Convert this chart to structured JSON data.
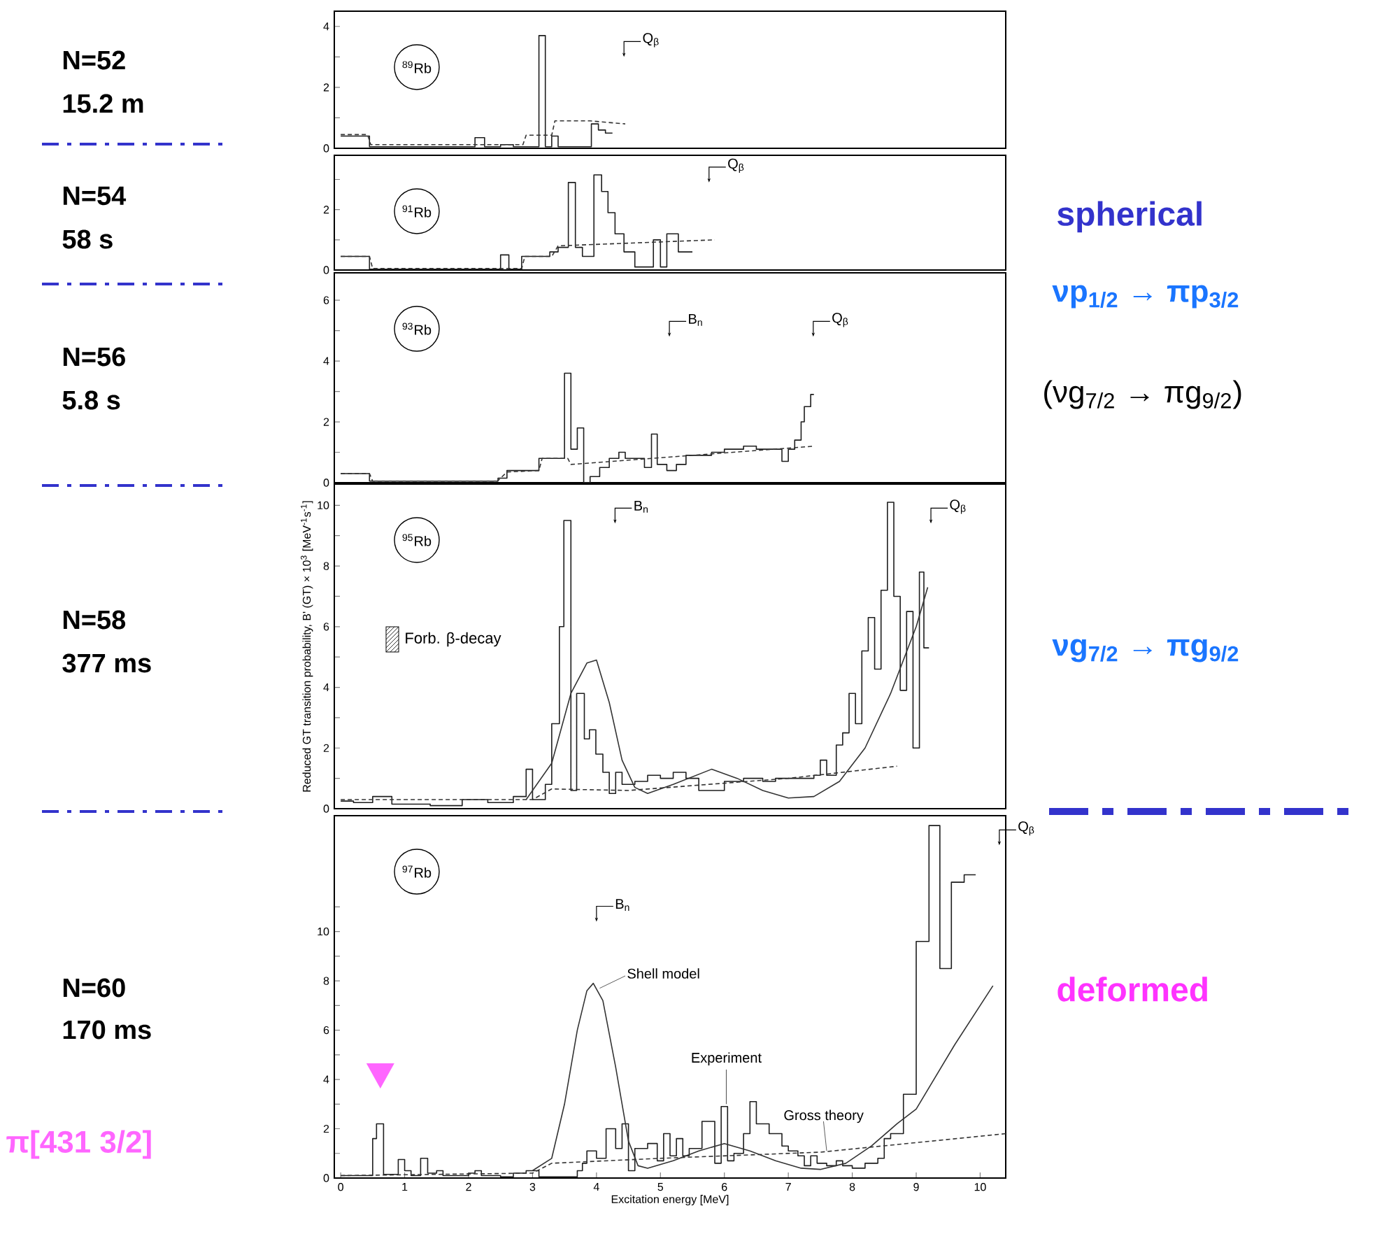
{
  "chart_data": [
    {
      "type": "histogram",
      "xlim": [
        -0.1,
        10.4
      ],
      "ylim": [
        0,
        4.5
      ],
      "tick_labels": "y",
      "yticks": [
        0,
        {
          "value": 1,
          "label": null
        },
        2,
        {
          "value": 3,
          "label": null
        },
        4
      ],
      "series": [
        {
          "type": "histogram",
          "color": "#1e1e1e",
          "bins": [
            0,
            0.45,
            2.1,
            2.25,
            2.5,
            2.7,
            3.1,
            3.2,
            3.3,
            3.4,
            3.92,
            4.03,
            4.14,
            4.25
          ],
          "values": [
            0.4,
            0.05,
            0.35,
            0.05,
            0.12,
            0.05,
            3.7,
            0.05,
            0.4,
            0.05,
            0.8,
            0.6,
            0.5
          ]
        },
        {
          "type": "line",
          "line_style": "dashed",
          "color": "#333333",
          "x": [
            0,
            0.42,
            0.47,
            2.85,
            2.9,
            3.3,
            3.35,
            3.9,
            4.45
          ],
          "values": [
            0.45,
            0.45,
            0.12,
            0.12,
            0.43,
            0.43,
            0.9,
            0.9,
            0.8
          ]
        }
      ],
      "annotations": [
        "$^{89}$Rb",
        "N=52",
        "15.2 m",
        {
          "text": "Q$_{β}$",
          "x": 4.43,
          "y": 3.0
        }
      ]
    },
    {
      "type": "histogram",
      "xlim": [
        -0.1,
        10.4
      ],
      "ylim": [
        0,
        3.8
      ],
      "tick_labels": "y",
      "yticks": [
        0,
        {
          "value": 1,
          "label": null
        },
        2,
        {
          "value": 3,
          "label": null
        }
      ],
      "series": [
        {
          "type": "histogram",
          "color": "#1e1e1e",
          "bins": [
            0,
            0.45,
            2.5,
            2.63,
            2.83,
            3.27,
            3.4,
            3.56,
            3.67,
            3.78,
            3.96,
            4.08,
            4.18,
            4.29,
            4.43,
            4.6,
            4.89,
            5.0,
            5.1,
            5.28,
            5.5
          ],
          "values": [
            0.45,
            0.03,
            0.5,
            0.03,
            0.45,
            0.6,
            0.75,
            2.9,
            0.75,
            0.45,
            3.15,
            2.6,
            1.9,
            1.2,
            0.6,
            0.1,
            1.0,
            0.1,
            1.2,
            0.6
          ]
        },
        {
          "type": "line",
          "line_style": "dashed",
          "color": "#333333",
          "x": [
            0,
            0.45,
            0.5,
            2.83,
            2.88,
            3.3,
            3.4,
            5.85
          ],
          "values": [
            0.45,
            0.45,
            0.05,
            0.05,
            0.45,
            0.45,
            0.8,
            1.0
          ]
        }
      ],
      "annotations": [
        "$^{91}$Rb",
        "N=54",
        "58 s",
        "spherical",
        {
          "text": "Q$_{β}$",
          "x": 5.76,
          "y": 2.9
        }
      ]
    },
    {
      "type": "histogram",
      "xlim": [
        -0.1,
        10.4
      ],
      "ylim": [
        0,
        6.9
      ],
      "tick_labels": "y",
      "yticks": [
        0,
        {
          "value": 1,
          "label": null
        },
        2,
        {
          "value": 3,
          "label": null
        },
        4,
        {
          "value": 5,
          "label": null
        },
        6
      ],
      "series": [
        {
          "type": "histogram",
          "color": "#1e1e1e",
          "bins": [
            0,
            0.45,
            2.46,
            2.6,
            3.1,
            3.5,
            3.6,
            3.7,
            3.8,
            3.9,
            4.05,
            4.2,
            4.35,
            4.45,
            4.75,
            4.86,
            4.95,
            5.1,
            5.25,
            5.4,
            5.8,
            6.0,
            6.3,
            6.5,
            6.9,
            7.0,
            7.1,
            7.2,
            7.25,
            7.35,
            7.4
          ],
          "values": [
            0.3,
            0.05,
            0.15,
            0.4,
            0.8,
            3.6,
            1.1,
            1.8,
            0,
            0.2,
            0.5,
            0.8,
            1.0,
            0.8,
            0.5,
            1.6,
            0.6,
            0.4,
            0.6,
            0.9,
            1.0,
            1.1,
            1.2,
            1.1,
            0.7,
            1.1,
            1.4,
            2.0,
            2.5,
            2.9
          ]
        },
        {
          "type": "line",
          "line_style": "dashed",
          "color": "#333333",
          "x": [
            0,
            0.45,
            0.5,
            2.45,
            2.6,
            3.1,
            3.15,
            3.55,
            3.6,
            7.4
          ],
          "values": [
            0.3,
            0.3,
            0.05,
            0.05,
            0.35,
            0.4,
            0.8,
            0.8,
            0.6,
            1.2
          ]
        }
      ],
      "annotations": [
        "$^{93}$Rb",
        "N=56",
        "5.8 s",
        "νp$_{1/2}$ → πp$_{3/2}$",
        "(νg$_{7/2}$ → πg$_{9/2}$)",
        {
          "text": "B$_{n}$",
          "x": 5.14,
          "y": 4.8
        },
        {
          "text": "Q$_{β}$",
          "x": 7.39,
          "y": 4.8
        }
      ]
    },
    {
      "type": "histogram",
      "xlim": [
        -0.1,
        10.4
      ],
      "ylim": [
        0,
        10.7
      ],
      "tick_labels": "y",
      "ylabel": "Reduced GT transition probability, B' (GT) × 10$^{3}$ [MeV$^{-1}$s$^{-1}$]",
      "yticks": [
        0,
        {
          "value": 1,
          "label": null
        },
        2,
        {
          "value": 3,
          "label": null
        },
        4,
        {
          "value": 5,
          "label": null
        },
        6,
        {
          "value": 7,
          "label": null
        },
        8,
        {
          "value": 9,
          "label": null
        },
        10
      ],
      "series": [
        {
          "type": "histogram",
          "color": "#1e1e1e",
          "bins": [
            0,
            0.2,
            0.5,
            0.8,
            1.4,
            1.9,
            2.3,
            2.7,
            2.9,
            3.0,
            3.2,
            3.3,
            3.42,
            3.49,
            3.6,
            3.69,
            3.81,
            3.89,
            3.99,
            4.1,
            4.2,
            4.3,
            4.4,
            4.6,
            4.8,
            5.0,
            5.2,
            5.4,
            5.6,
            6.0,
            6.3,
            6.6,
            6.8,
            7.4,
            7.5,
            7.6,
            7.75,
            7.85,
            7.95,
            8.05,
            8.15,
            8.25,
            8.35,
            8.45,
            8.55,
            8.65,
            8.75,
            8.85,
            8.95,
            9.05,
            9.12,
            9.2
          ],
          "values": [
            0.25,
            0.2,
            0.4,
            0.15,
            0.1,
            0.3,
            0.2,
            0.4,
            1.3,
            0.3,
            0.8,
            2.8,
            6.0,
            9.5,
            0.6,
            3.8,
            2.3,
            2.6,
            1.8,
            1.2,
            0.5,
            1.2,
            0.8,
            0.9,
            1.1,
            1.0,
            1.2,
            1.0,
            0.6,
            0.9,
            1.0,
            0.9,
            1.0,
            1.1,
            1.6,
            1.1,
            2.1,
            2.5,
            3.8,
            2.8,
            5.2,
            6.3,
            4.6,
            7.2,
            10.1,
            7.0,
            3.9,
            6.5,
            2.0,
            7.8,
            5.3
          ]
        },
        {
          "type": "line",
          "color": "#333333",
          "x": [
            2.9,
            3.3,
            3.6,
            3.85,
            4.0,
            4.2,
            4.4,
            4.6,
            4.8,
            5.2,
            5.8,
            6.2,
            6.6,
            7.0,
            7.4,
            7.8,
            8.2,
            8.6,
            9.0,
            9.18
          ],
          "values": [
            0.3,
            1.5,
            3.8,
            4.8,
            4.9,
            3.5,
            1.6,
            0.7,
            0.5,
            0.8,
            1.3,
            1.0,
            0.6,
            0.35,
            0.4,
            0.9,
            2.0,
            3.8,
            6.0,
            7.3
          ]
        },
        {
          "type": "line",
          "line_style": "dashed",
          "color": "#333333",
          "x": [
            0,
            3.0,
            3.3,
            4.5,
            7.0,
            8.7
          ],
          "values": [
            0.3,
            0.3,
            0.65,
            0.6,
            1.0,
            1.4
          ]
        }
      ],
      "annotations": [
        "$^{95}$Rb",
        "N=58",
        "377 ms",
        "νg$_{7/2}$ → πg$_{9/2}$",
        "Forb. β-decay",
        {
          "text": "B$_{n}$",
          "x": 4.29,
          "y": 9.4
        },
        {
          "text": "Q$_{β}$",
          "x": 9.23,
          "y": 9.4
        }
      ]
    },
    {
      "type": "histogram",
      "xlim": [
        -0.1,
        10.4
      ],
      "ylim": [
        0,
        14.7
      ],
      "xlabel": "Excitation energy [MeV]",
      "xticks": [
        0,
        1,
        2,
        3,
        4,
        5,
        6,
        7,
        8,
        9,
        10
      ],
      "yticks": [
        0,
        {
          "value": 1,
          "label": null
        },
        2,
        {
          "value": 3,
          "label": null
        },
        4,
        {
          "value": 5,
          "label": null
        },
        6,
        {
          "value": 7,
          "label": null
        },
        8,
        {
          "value": 9,
          "label": null
        },
        10,
        {
          "value": 11,
          "label": null
        }
      ],
      "series": [
        {
          "type": "histogram",
          "name": "Experiment",
          "color": "#1e1e1e",
          "bins": [
            0,
            0.5,
            0.56,
            0.67,
            0.9,
            1.0,
            1.1,
            1.25,
            1.36,
            1.5,
            1.6,
            2.0,
            2.1,
            2.2,
            2.5,
            2.7,
            2.9,
            3.1,
            3.7,
            3.78,
            3.85,
            4.0,
            4.15,
            4.3,
            4.4,
            4.5,
            4.6,
            4.8,
            4.95,
            5.05,
            5.15,
            5.25,
            5.35,
            5.45,
            5.65,
            5.85,
            5.95,
            6.05,
            6.15,
            6.3,
            6.4,
            6.5,
            6.7,
            6.9,
            7.0,
            7.15,
            7.25,
            7.35,
            7.45,
            7.6,
            7.75,
            7.85,
            8.0,
            8.2,
            8.4,
            8.5,
            8.6,
            8.8,
            9.0,
            9.2,
            9.37,
            9.55,
            9.75,
            9.93
          ],
          "values": [
            0.1,
            1.6,
            2.2,
            0.15,
            0.75,
            0.3,
            0.1,
            0.8,
            0.2,
            0.3,
            0.1,
            0.2,
            0.3,
            0.1,
            0.05,
            0.2,
            0.3,
            0.05,
            0.3,
            0.6,
            1.1,
            0.8,
            2.0,
            1.2,
            2.2,
            0.3,
            1.2,
            1.4,
            0.7,
            1.8,
            0.9,
            1.6,
            0.9,
            1.2,
            2.3,
            0.6,
            2.9,
            0.7,
            1.0,
            1.8,
            3.1,
            2.2,
            1.8,
            1.3,
            1.1,
            0.9,
            0.5,
            0.9,
            0.6,
            0.5,
            0.7,
            0.5,
            0.4,
            0.6,
            0.8,
            1.6,
            1.8,
            3.4,
            9.6,
            14.3,
            8.5,
            12.0,
            12.3
          ]
        },
        {
          "type": "line",
          "name": "Shell model",
          "color": "#333333",
          "x": [
            3.0,
            3.3,
            3.5,
            3.7,
            3.85,
            3.95,
            4.1,
            4.3,
            4.5,
            4.65,
            4.8,
            5.2,
            5.6,
            6.0,
            6.4,
            6.8,
            7.2,
            7.5,
            7.9,
            8.3,
            8.7,
            9.0,
            9.6,
            10.2
          ],
          "values": [
            0.3,
            0.8,
            3.0,
            6.0,
            7.6,
            7.9,
            7.2,
            4.5,
            1.5,
            0.5,
            0.4,
            0.7,
            1.1,
            1.4,
            1.1,
            0.7,
            0.4,
            0.35,
            0.6,
            1.3,
            2.2,
            2.8,
            5.4,
            7.8
          ]
        },
        {
          "type": "line",
          "name": "Gross theory",
          "line_style": "dashed",
          "color": "#333333",
          "x": [
            0,
            3.0,
            3.3,
            5.0,
            7.5,
            10.4
          ],
          "values": [
            0.1,
            0.2,
            0.6,
            0.8,
            1.05,
            1.8
          ]
        }
      ],
      "annotations": [
        "$^{97}$Rb",
        "N=60",
        "170 ms",
        "deformed",
        "π[431 3/2]",
        {
          "text": "B$_{n}$",
          "x": 4.0,
          "y": 10.4
        },
        {
          "text": "Q$_{β}$",
          "x": 10.3,
          "y": 13.5
        }
      ]
    }
  ]
}
